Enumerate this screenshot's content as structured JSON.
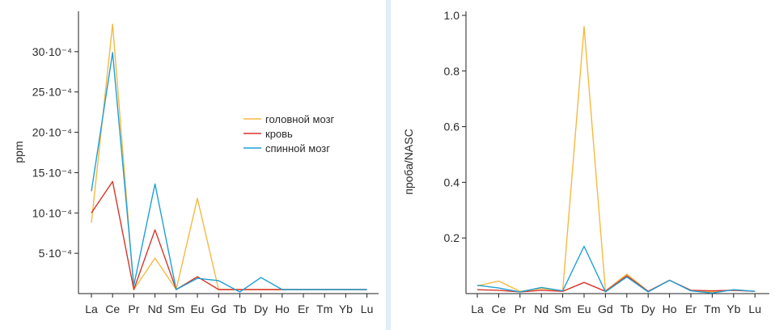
{
  "colors": {
    "brain": "#f5b940",
    "blood": "#d8352a",
    "spine": "#1ea0d6"
  },
  "chart_data": [
    {
      "type": "line",
      "ylabel": "ppm",
      "xlabel": "",
      "categories": [
        "La",
        "Ce",
        "Pr",
        "Nd",
        "Sm",
        "Eu",
        "Gd",
        "Tb",
        "Dy",
        "Ho",
        "Er",
        "Tm",
        "Yb",
        "Lu"
      ],
      "ylim": [
        0,
        0.0035
      ],
      "yticks": [
        {
          "value": 0.0005,
          "label": "5·10⁻⁴"
        },
        {
          "value": 0.001,
          "label": "10·10⁻⁴"
        },
        {
          "value": 0.0015,
          "label": "15·10⁻⁴"
        },
        {
          "value": 0.002,
          "label": "20·10⁻⁴"
        },
        {
          "value": 0.0025,
          "label": "25·10⁻⁴"
        },
        {
          "value": 0.003,
          "label": "30·10⁻⁴"
        }
      ],
      "legend_position": "center-right",
      "series": [
        {
          "name": "головной мозг",
          "color_key": "brain",
          "values": [
            0.00088,
            0.00334,
            5e-05,
            0.00044,
            5e-05,
            0.00118,
            5e-05,
            5e-05,
            5e-05,
            5e-05,
            5e-05,
            5e-05,
            5e-05,
            5e-05
          ]
        },
        {
          "name": "кровь",
          "color_key": "blood",
          "values": [
            0.001,
            0.00139,
            5e-05,
            0.00079,
            5e-05,
            0.00021,
            5e-05,
            5e-05,
            5e-05,
            5e-05,
            5e-05,
            5e-05,
            5e-05,
            5e-05
          ]
        },
        {
          "name": "спинной мозг",
          "color_key": "spine",
          "values": [
            0.00127,
            0.00299,
            0.0001,
            0.00136,
            5e-05,
            0.00019,
            0.00016,
            2e-05,
            0.0002,
            5e-05,
            5e-05,
            5e-05,
            5e-05,
            5e-05
          ]
        }
      ]
    },
    {
      "type": "line",
      "ylabel": "проба/NASC",
      "xlabel": "",
      "categories": [
        "La",
        "Ce",
        "Pr",
        "Nd",
        "Sm",
        "Eu",
        "Gd",
        "Tb",
        "Dy",
        "Ho",
        "Er",
        "Tm",
        "Yb",
        "Lu"
      ],
      "ylim": [
        0,
        1.0
      ],
      "yticks": [
        {
          "value": 0.2,
          "label": "0.2"
        },
        {
          "value": 0.4,
          "label": "0.4"
        },
        {
          "value": 0.6,
          "label": "0.6"
        },
        {
          "value": 0.8,
          "label": "0.8"
        },
        {
          "value": 1.0,
          "label": "1.0"
        }
      ],
      "series": [
        {
          "color_key": "brain",
          "values": [
            0.028,
            0.045,
            0.008,
            0.018,
            0.01,
            0.96,
            0.01,
            0.07,
            0.008,
            0.048,
            0.012,
            0.006,
            0.014,
            0.008
          ]
        },
        {
          "color_key": "blood",
          "values": [
            0.014,
            0.012,
            0.006,
            0.012,
            0.008,
            0.04,
            0.008,
            0.064,
            0.008,
            0.048,
            0.012,
            0.01,
            0.012,
            0.008
          ]
        },
        {
          "color_key": "spine",
          "values": [
            0.03,
            0.02,
            0.006,
            0.022,
            0.01,
            0.17,
            0.006,
            0.06,
            0.006,
            0.048,
            0.01,
            0.002,
            0.014,
            0.008
          ]
        }
      ]
    }
  ]
}
